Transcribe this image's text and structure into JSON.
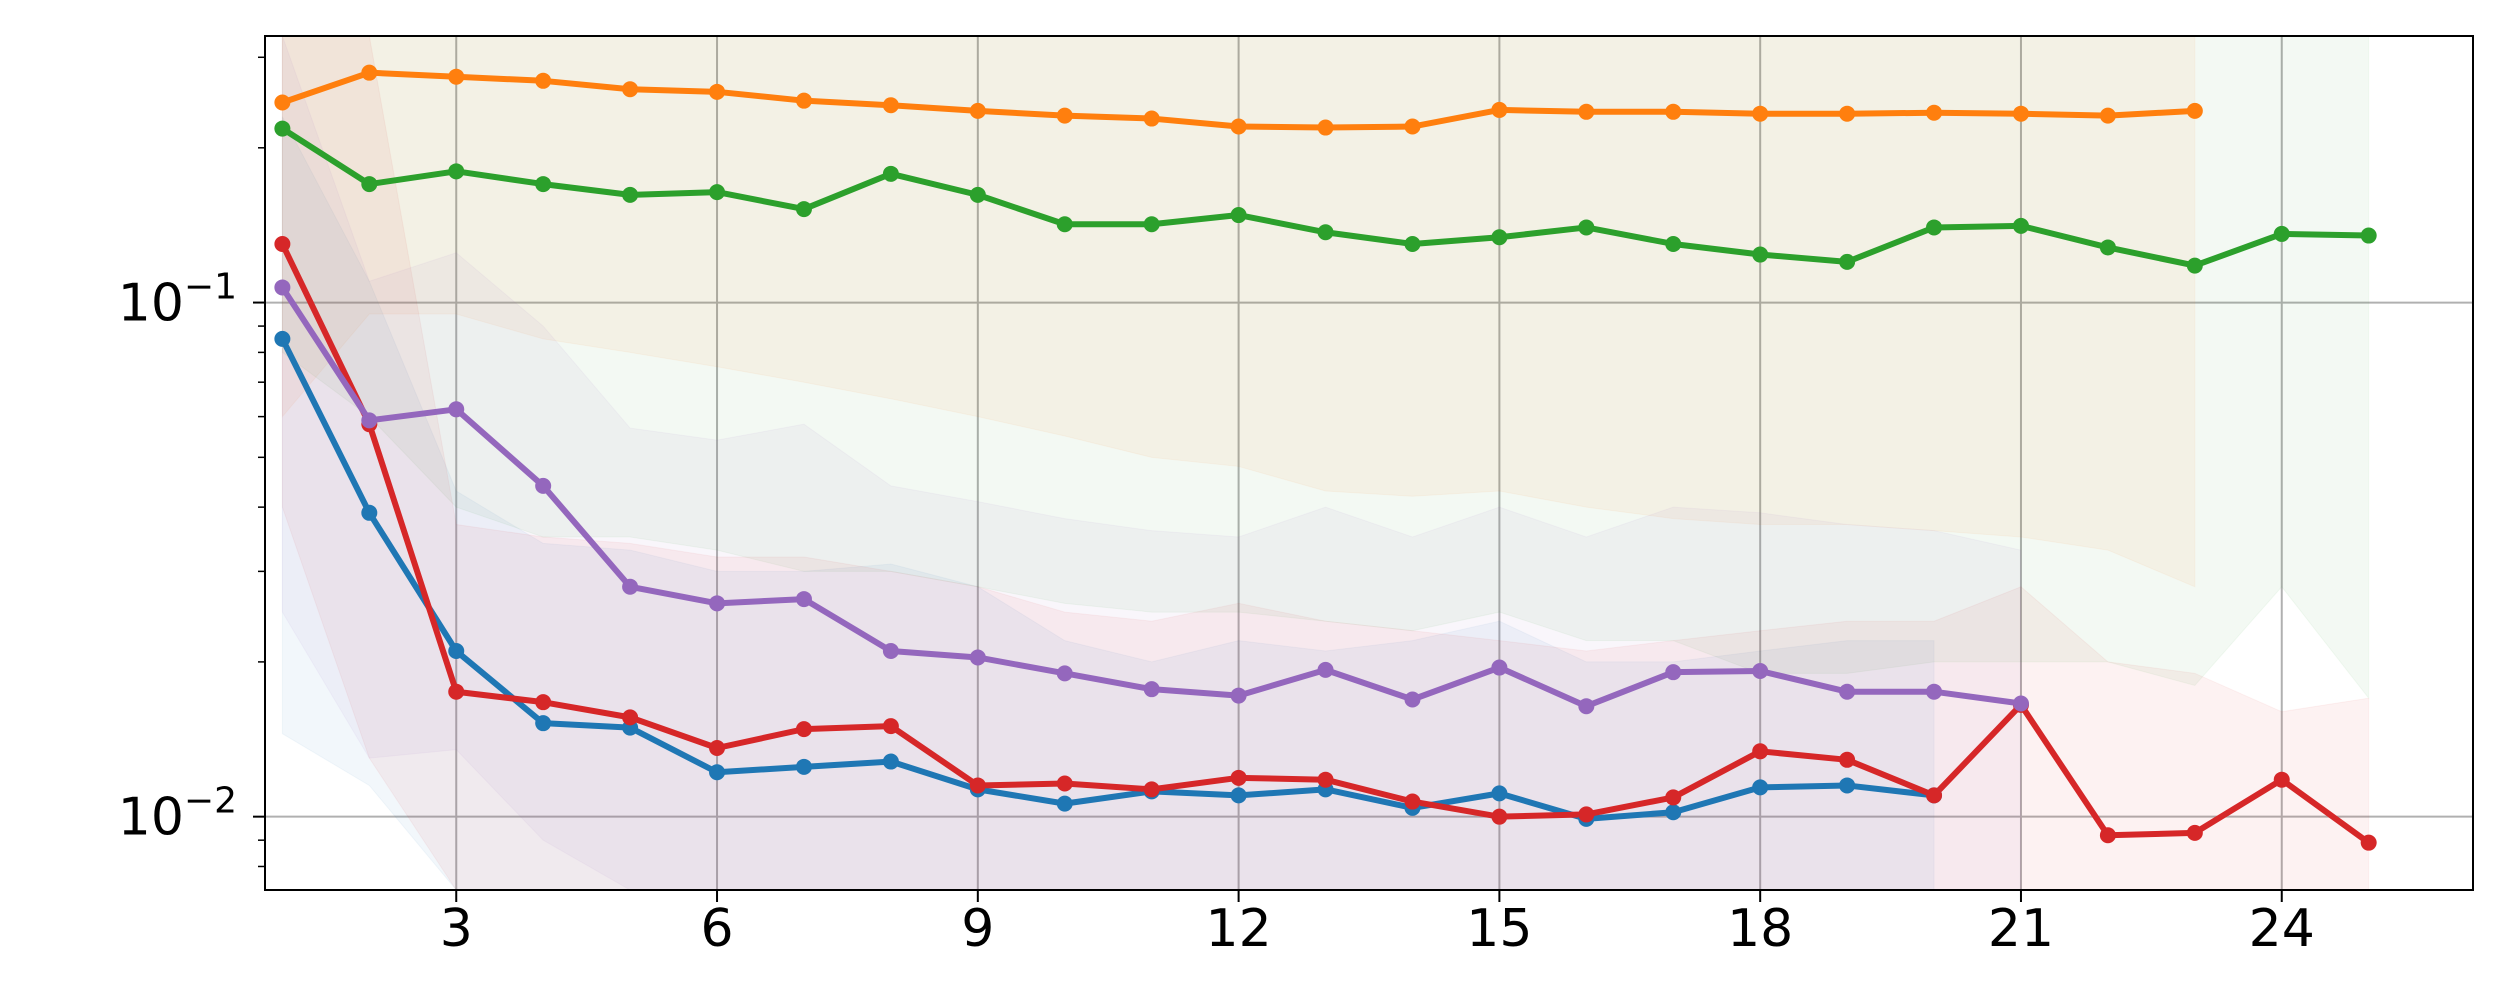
{
  "chart_data": {
    "type": "line",
    "title": "",
    "xlabel": "",
    "ylabel": "",
    "y_scale": "log",
    "xlim": [
      0.8,
      26.2
    ],
    "ylim": [
      0.0072,
      0.33
    ],
    "x_ticks": [
      3,
      6,
      9,
      12,
      15,
      18,
      21,
      24
    ],
    "y_ticks": [
      {
        "value": 0.1,
        "base": "10",
        "exp": "−1"
      },
      {
        "value": 0.01,
        "base": "10",
        "exp": "−2"
      }
    ],
    "grid": true,
    "legend": "none",
    "series": [
      {
        "color": "#1f77b4",
        "x": [
          1,
          2,
          3,
          4,
          5,
          6,
          7,
          8,
          9,
          10,
          11,
          12,
          13,
          14,
          15,
          16,
          17,
          18,
          19,
          20
        ],
        "values": [
          0.085,
          0.039,
          0.021,
          0.0152,
          0.0149,
          0.0122,
          0.0125,
          0.0128,
          0.0113,
          0.0106,
          0.0112,
          0.011,
          0.0113,
          0.0104,
          0.0111,
          0.0099,
          0.0102,
          0.0114,
          0.0115,
          0.011
        ],
        "band_low": [
          0.0145,
          0.0115,
          0.0055,
          0.0045,
          0.004,
          0.0035,
          0.0035,
          0.003,
          0.003,
          0.003,
          0.003,
          0.003,
          0.003,
          0.003,
          0.003,
          0.003,
          0.003,
          0.003,
          0.003,
          0.003
        ],
        "band_high": [
          0.23,
          0.11,
          0.043,
          0.034,
          0.033,
          0.03,
          0.03,
          0.031,
          0.028,
          0.022,
          0.02,
          0.022,
          0.021,
          0.022,
          0.024,
          0.02,
          0.02,
          0.021,
          0.022,
          0.022
        ]
      },
      {
        "color": "#ff7f0e",
        "x": [
          1,
          2,
          3,
          4,
          5,
          6,
          7,
          8,
          9,
          10,
          11,
          12,
          13,
          14,
          15,
          16,
          17,
          18,
          19,
          20,
          21,
          22,
          23
        ],
        "values": [
          0.245,
          0.28,
          0.275,
          0.27,
          0.26,
          0.257,
          0.247,
          0.242,
          0.236,
          0.231,
          0.228,
          0.22,
          0.219,
          0.22,
          0.237,
          0.235,
          0.235,
          0.233,
          0.233,
          0.234,
          0.233,
          0.231,
          0.236
        ],
        "band_low": [
          0.06,
          0.095,
          0.095,
          0.085,
          0.08,
          0.075,
          0.07,
          0.065,
          0.06,
          0.055,
          0.05,
          0.048,
          0.043,
          0.042,
          0.043,
          0.04,
          0.038,
          0.037,
          0.037,
          0.036,
          0.035,
          0.033,
          0.028
        ],
        "band_high": [
          0.33,
          0.33,
          0.33,
          0.33,
          0.33,
          0.33,
          0.33,
          0.33,
          0.33,
          0.33,
          0.33,
          0.33,
          0.33,
          0.33,
          0.33,
          0.33,
          0.33,
          0.33,
          0.33,
          0.33,
          0.33,
          0.33,
          0.33
        ]
      },
      {
        "color": "#2ca02c",
        "x": [
          1,
          2,
          3,
          4,
          5,
          6,
          7,
          8,
          9,
          10,
          11,
          12,
          13,
          14,
          15,
          16,
          17,
          18,
          19,
          20,
          21,
          22,
          23,
          24,
          25
        ],
        "values": [
          0.218,
          0.17,
          0.18,
          0.17,
          0.162,
          0.164,
          0.152,
          0.178,
          0.162,
          0.142,
          0.142,
          0.148,
          0.137,
          0.13,
          0.134,
          0.14,
          0.13,
          0.124,
          0.12,
          0.14,
          0.141,
          0.128,
          0.118,
          0.136,
          0.135
        ],
        "band_low": [
          0.08,
          0.06,
          0.04,
          0.035,
          0.035,
          0.033,
          0.03,
          0.03,
          0.028,
          0.026,
          0.025,
          0.025,
          0.024,
          0.023,
          0.025,
          0.022,
          0.022,
          0.019,
          0.019,
          0.02,
          0.02,
          0.02,
          0.018,
          0.028,
          0.017
        ],
        "band_high": [
          0.33,
          0.33,
          0.33,
          0.33,
          0.33,
          0.33,
          0.33,
          0.33,
          0.33,
          0.33,
          0.33,
          0.33,
          0.33,
          0.33,
          0.33,
          0.33,
          0.33,
          0.33,
          0.33,
          0.33,
          0.33,
          0.33,
          0.33,
          0.33,
          0.33
        ]
      },
      {
        "color": "#d62728",
        "x": [
          1,
          2,
          3,
          4,
          5,
          6,
          7,
          8,
          9,
          10,
          11,
          12,
          13,
          14,
          15,
          16,
          17,
          18,
          19,
          20,
          21,
          22,
          23,
          24,
          25
        ],
        "values": [
          0.13,
          0.058,
          0.0175,
          0.0167,
          0.0156,
          0.0136,
          0.0148,
          0.015,
          0.0115,
          0.0116,
          0.0113,
          0.0119,
          0.0118,
          0.0107,
          0.01,
          0.0101,
          0.0109,
          0.0134,
          0.0129,
          0.011,
          0.0165,
          0.0092,
          0.0093,
          0.0118,
          0.0089
        ],
        "band_low": [
          0.04,
          0.013,
          0.0072,
          0.0072,
          0.0072,
          0.0072,
          0.0072,
          0.0072,
          0.0072,
          0.0072,
          0.0072,
          0.0072,
          0.0072,
          0.0072,
          0.0072,
          0.0072,
          0.0072,
          0.0072,
          0.0072,
          0.0072,
          0.0072,
          0.0072,
          0.0072,
          0.0072,
          0.0072
        ],
        "band_high": [
          0.33,
          0.33,
          0.037,
          0.035,
          0.034,
          0.032,
          0.032,
          0.03,
          0.028,
          0.025,
          0.024,
          0.026,
          0.024,
          0.023,
          0.022,
          0.021,
          0.022,
          0.023,
          0.024,
          0.024,
          0.028,
          0.02,
          0.019,
          0.016,
          0.017
        ]
      },
      {
        "color": "#9467bd",
        "x": [
          1,
          2,
          3,
          4,
          5,
          6,
          7,
          8,
          9,
          10,
          11,
          12,
          13,
          14,
          15,
          16,
          17,
          18,
          19,
          20,
          21
        ],
        "values": [
          0.107,
          0.059,
          0.062,
          0.044,
          0.028,
          0.026,
          0.0265,
          0.021,
          0.0204,
          0.019,
          0.0177,
          0.0172,
          0.0193,
          0.0169,
          0.0195,
          0.0164,
          0.0191,
          0.0192,
          0.0175,
          0.0175,
          0.0166
        ],
        "band_low": [
          0.025,
          0.013,
          0.0135,
          0.009,
          0.0072,
          0.0072,
          0.0072,
          0.0072,
          0.0072,
          0.0072,
          0.0072,
          0.0072,
          0.0072,
          0.0072,
          0.0072,
          0.0072,
          0.0072,
          0.0072,
          0.0072,
          0.0072,
          0.0072
        ],
        "band_high": [
          0.33,
          0.11,
          0.125,
          0.09,
          0.057,
          0.054,
          0.058,
          0.044,
          0.041,
          0.038,
          0.036,
          0.035,
          0.04,
          0.035,
          0.04,
          0.035,
          0.04,
          0.039,
          0.037,
          0.036,
          0.033
        ]
      }
    ]
  }
}
